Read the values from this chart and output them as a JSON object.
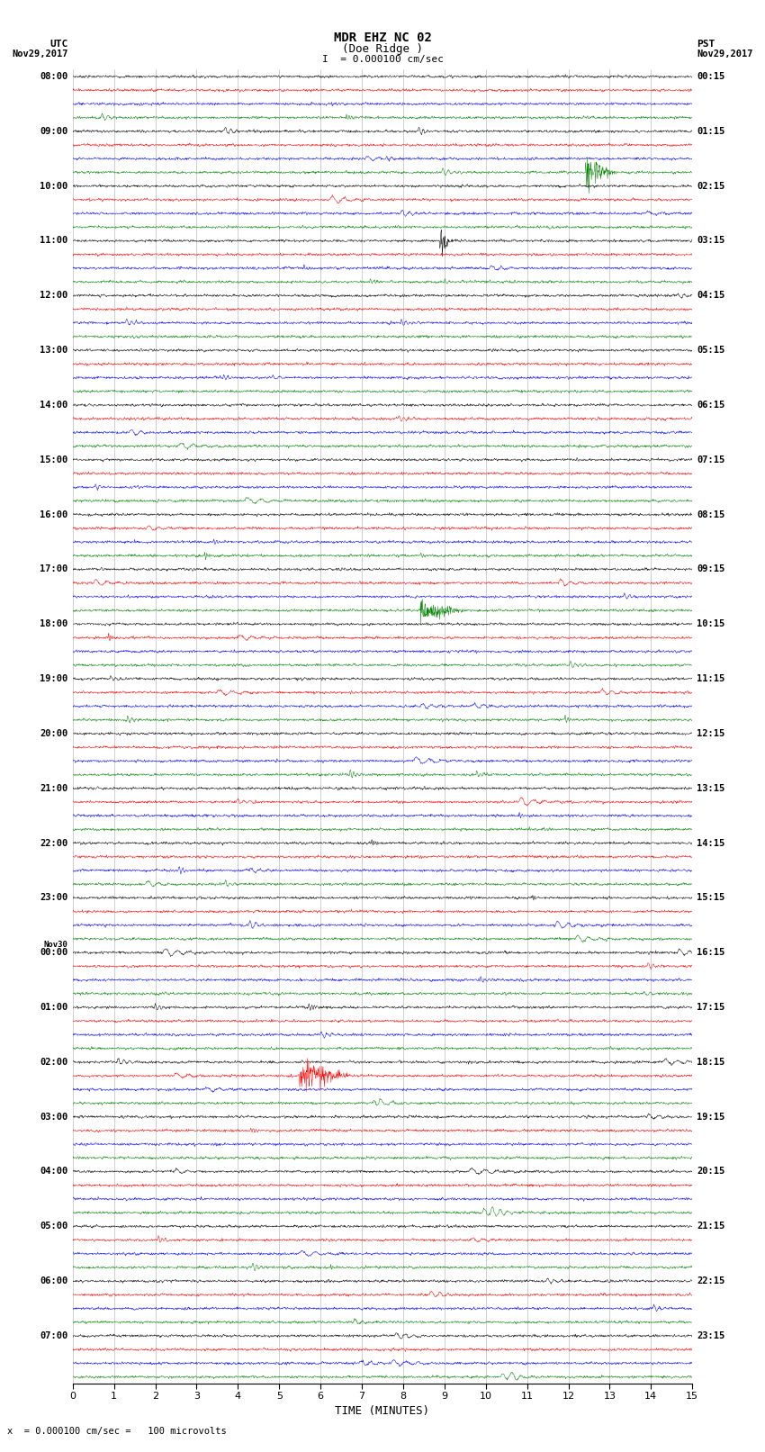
{
  "title_line1": "MDR EHZ NC 02",
  "title_line2": "(Doe Ridge )",
  "scale_text": "I  = 0.000100 cm/sec",
  "utc_label": "UTC",
  "utc_date": "Nov29,2017",
  "pst_label": "PST",
  "pst_date": "Nov29,2017",
  "xlabel": "TIME (MINUTES)",
  "footnote": "x  = 0.000100 cm/sec =   100 microvolts",
  "xlim": [
    0,
    15
  ],
  "xticks": [
    0,
    1,
    2,
    3,
    4,
    5,
    6,
    7,
    8,
    9,
    10,
    11,
    12,
    13,
    14,
    15
  ],
  "colors": [
    "black",
    "red",
    "blue",
    "green"
  ],
  "utc_times": [
    "08:00",
    "",
    "",
    "",
    "09:00",
    "",
    "",
    "",
    "10:00",
    "",
    "",
    "",
    "11:00",
    "",
    "",
    "",
    "12:00",
    "",
    "",
    "",
    "13:00",
    "",
    "",
    "",
    "14:00",
    "",
    "",
    "",
    "15:00",
    "",
    "",
    "",
    "16:00",
    "",
    "",
    "",
    "17:00",
    "",
    "",
    "",
    "18:00",
    "",
    "",
    "",
    "19:00",
    "",
    "",
    "",
    "20:00",
    "",
    "",
    "",
    "21:00",
    "",
    "",
    "",
    "22:00",
    "",
    "",
    "",
    "23:00",
    "",
    "",
    "",
    "Nov30\n00:00",
    "",
    "",
    "",
    "01:00",
    "",
    "",
    "",
    "02:00",
    "",
    "",
    "",
    "03:00",
    "",
    "",
    "",
    "04:00",
    "",
    "",
    "",
    "05:00",
    "",
    "",
    "",
    "06:00",
    "",
    "",
    "",
    "07:00",
    "",
    "",
    ""
  ],
  "pst_times": [
    "00:15",
    "",
    "",
    "",
    "01:15",
    "",
    "",
    "",
    "02:15",
    "",
    "",
    "",
    "03:15",
    "",
    "",
    "",
    "04:15",
    "",
    "",
    "",
    "05:15",
    "",
    "",
    "",
    "06:15",
    "",
    "",
    "",
    "07:15",
    "",
    "",
    "",
    "08:15",
    "",
    "",
    "",
    "09:15",
    "",
    "",
    "",
    "10:15",
    "",
    "",
    "",
    "11:15",
    "",
    "",
    "",
    "12:15",
    "",
    "",
    "",
    "13:15",
    "",
    "",
    "",
    "14:15",
    "",
    "",
    "",
    "15:15",
    "",
    "",
    "",
    "16:15",
    "",
    "",
    "",
    "17:15",
    "",
    "",
    "",
    "18:15",
    "",
    "",
    "",
    "19:15",
    "",
    "",
    "",
    "20:15",
    "",
    "",
    "",
    "21:15",
    "",
    "",
    "",
    "22:15",
    "",
    "",
    "",
    "23:15",
    "",
    "",
    ""
  ],
  "n_rows": 96,
  "noise_amplitude": 0.06,
  "spike_amplitude": 0.35,
  "background_color": "white",
  "grid_color": "#888888",
  "fig_width": 8.5,
  "fig_height": 16.13,
  "dpi": 100
}
